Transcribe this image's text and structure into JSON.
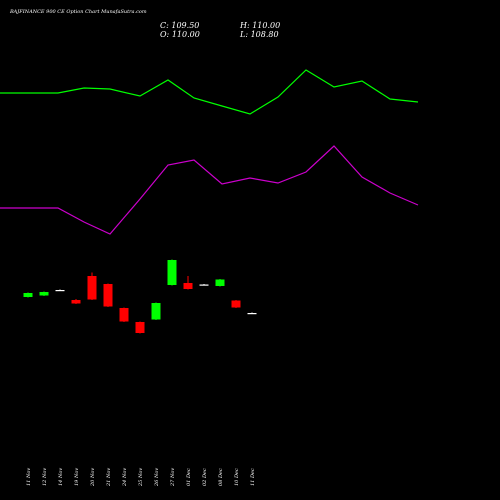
{
  "header": {
    "title": "BAJFINANCE 900  CE Option  Chart MunafaSutra.com",
    "open_label": "O:",
    "open_value": "110.00",
    "high_label": "H:",
    "high_value": "110.00",
    "low_label": "L:",
    "low_value": "108.80",
    "close_label": "C:",
    "close_value": "109.50"
  },
  "colors": {
    "background": "#000000",
    "bullish": "#00ff00",
    "bearish": "#ff0000",
    "upper_line": "#00ff00",
    "lower_line": "#cc00cc",
    "doji": "#ffffff"
  },
  "chart_data": {
    "type": "candlestick",
    "categories": [
      "11 Nov",
      "12 Nov",
      "14 Nov",
      "19 Nov",
      "20 Nov",
      "21 Nov",
      "24 Nov",
      "25 Nov",
      "26 Nov",
      "27 Nov",
      "01 Dec",
      "02 Dec",
      "08 Dec",
      "10 Dec",
      "11 Dec"
    ],
    "candles": [
      {
        "open": 297.0,
        "close": 293.0,
        "high": 297.5,
        "low": 292.5
      },
      {
        "open": 295.5,
        "close": 292.0,
        "high": 296.0,
        "low": 291.5
      },
      {
        "open": 290.0,
        "close": 290.0,
        "high": 290.5,
        "low": 289.5
      },
      {
        "open": 300.0,
        "close": 303.5,
        "high": 304.0,
        "low": 299.0
      },
      {
        "open": 276.0,
        "close": 299.5,
        "high": 300.0,
        "low": 272.5
      },
      {
        "open": 284.0,
        "close": 306.5,
        "high": 307.0,
        "low": 283.5
      },
      {
        "open": 308.0,
        "close": 321.5,
        "high": 322.0,
        "low": 307.5
      },
      {
        "open": 322.0,
        "close": 333.0,
        "high": 333.5,
        "low": 321.5
      },
      {
        "open": 319.5,
        "close": 303.0,
        "high": 320.0,
        "low": 302.5
      },
      {
        "open": 285.0,
        "close": 260.0,
        "high": 285.5,
        "low": 259.5
      },
      {
        "open": 283.0,
        "close": 289.0,
        "high": 289.5,
        "low": 276.0
      },
      {
        "open": 284.5,
        "close": 284.5,
        "high": 285.0,
        "low": 284.0
      },
      {
        "open": 286.0,
        "close": 279.5,
        "high": 286.5,
        "low": 279.0
      },
      {
        "open": 300.5,
        "close": 307.5,
        "high": 308.0,
        "low": 300.0
      },
      {
        "open": 313.0,
        "close": 313.0,
        "high": 313.5,
        "low": 312.5
      }
    ],
    "series": [
      {
        "values": [
          93,
          93,
          88,
          89,
          96,
          80,
          98,
          106,
          114,
          97,
          70,
          87,
          81,
          99,
          102
        ]
      },
      {
        "values": [
          208,
          208,
          222,
          234,
          199,
          165,
          160,
          184,
          178,
          183,
          172,
          146,
          177,
          193,
          205
        ]
      }
    ]
  }
}
